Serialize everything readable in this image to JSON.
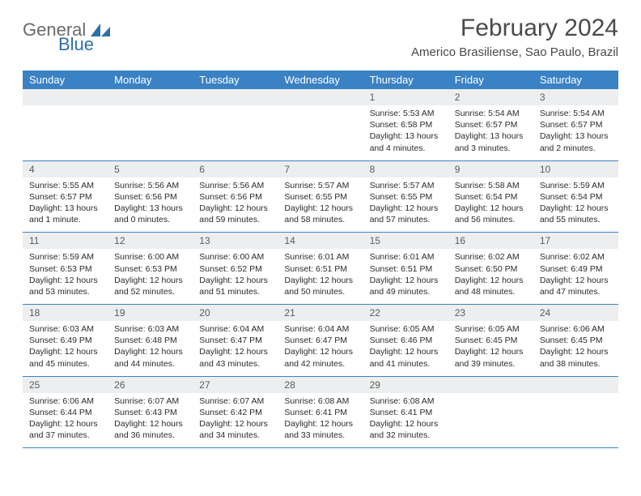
{
  "logo": {
    "general": "General",
    "blue": "Blue"
  },
  "title": "February 2024",
  "location": "Americo Brasiliense, Sao Paulo, Brazil",
  "header_bg": "#3a82c4",
  "daynum_bg": "#eceeef",
  "weekdays": [
    "Sunday",
    "Monday",
    "Tuesday",
    "Wednesday",
    "Thursday",
    "Friday",
    "Saturday"
  ],
  "weeks": [
    [
      null,
      null,
      null,
      null,
      {
        "n": "1",
        "sr": "5:53 AM",
        "ss": "6:58 PM",
        "dl": "13 hours and 4 minutes."
      },
      {
        "n": "2",
        "sr": "5:54 AM",
        "ss": "6:57 PM",
        "dl": "13 hours and 3 minutes."
      },
      {
        "n": "3",
        "sr": "5:54 AM",
        "ss": "6:57 PM",
        "dl": "13 hours and 2 minutes."
      }
    ],
    [
      {
        "n": "4",
        "sr": "5:55 AM",
        "ss": "6:57 PM",
        "dl": "13 hours and 1 minute."
      },
      {
        "n": "5",
        "sr": "5:56 AM",
        "ss": "6:56 PM",
        "dl": "13 hours and 0 minutes."
      },
      {
        "n": "6",
        "sr": "5:56 AM",
        "ss": "6:56 PM",
        "dl": "12 hours and 59 minutes."
      },
      {
        "n": "7",
        "sr": "5:57 AM",
        "ss": "6:55 PM",
        "dl": "12 hours and 58 minutes."
      },
      {
        "n": "8",
        "sr": "5:57 AM",
        "ss": "6:55 PM",
        "dl": "12 hours and 57 minutes."
      },
      {
        "n": "9",
        "sr": "5:58 AM",
        "ss": "6:54 PM",
        "dl": "12 hours and 56 minutes."
      },
      {
        "n": "10",
        "sr": "5:59 AM",
        "ss": "6:54 PM",
        "dl": "12 hours and 55 minutes."
      }
    ],
    [
      {
        "n": "11",
        "sr": "5:59 AM",
        "ss": "6:53 PM",
        "dl": "12 hours and 53 minutes."
      },
      {
        "n": "12",
        "sr": "6:00 AM",
        "ss": "6:53 PM",
        "dl": "12 hours and 52 minutes."
      },
      {
        "n": "13",
        "sr": "6:00 AM",
        "ss": "6:52 PM",
        "dl": "12 hours and 51 minutes."
      },
      {
        "n": "14",
        "sr": "6:01 AM",
        "ss": "6:51 PM",
        "dl": "12 hours and 50 minutes."
      },
      {
        "n": "15",
        "sr": "6:01 AM",
        "ss": "6:51 PM",
        "dl": "12 hours and 49 minutes."
      },
      {
        "n": "16",
        "sr": "6:02 AM",
        "ss": "6:50 PM",
        "dl": "12 hours and 48 minutes."
      },
      {
        "n": "17",
        "sr": "6:02 AM",
        "ss": "6:49 PM",
        "dl": "12 hours and 47 minutes."
      }
    ],
    [
      {
        "n": "18",
        "sr": "6:03 AM",
        "ss": "6:49 PM",
        "dl": "12 hours and 45 minutes."
      },
      {
        "n": "19",
        "sr": "6:03 AM",
        "ss": "6:48 PM",
        "dl": "12 hours and 44 minutes."
      },
      {
        "n": "20",
        "sr": "6:04 AM",
        "ss": "6:47 PM",
        "dl": "12 hours and 43 minutes."
      },
      {
        "n": "21",
        "sr": "6:04 AM",
        "ss": "6:47 PM",
        "dl": "12 hours and 42 minutes."
      },
      {
        "n": "22",
        "sr": "6:05 AM",
        "ss": "6:46 PM",
        "dl": "12 hours and 41 minutes."
      },
      {
        "n": "23",
        "sr": "6:05 AM",
        "ss": "6:45 PM",
        "dl": "12 hours and 39 minutes."
      },
      {
        "n": "24",
        "sr": "6:06 AM",
        "ss": "6:45 PM",
        "dl": "12 hours and 38 minutes."
      }
    ],
    [
      {
        "n": "25",
        "sr": "6:06 AM",
        "ss": "6:44 PM",
        "dl": "12 hours and 37 minutes."
      },
      {
        "n": "26",
        "sr": "6:07 AM",
        "ss": "6:43 PM",
        "dl": "12 hours and 36 minutes."
      },
      {
        "n": "27",
        "sr": "6:07 AM",
        "ss": "6:42 PM",
        "dl": "12 hours and 34 minutes."
      },
      {
        "n": "28",
        "sr": "6:08 AM",
        "ss": "6:41 PM",
        "dl": "12 hours and 33 minutes."
      },
      {
        "n": "29",
        "sr": "6:08 AM",
        "ss": "6:41 PM",
        "dl": "12 hours and 32 minutes."
      },
      null,
      null
    ]
  ]
}
